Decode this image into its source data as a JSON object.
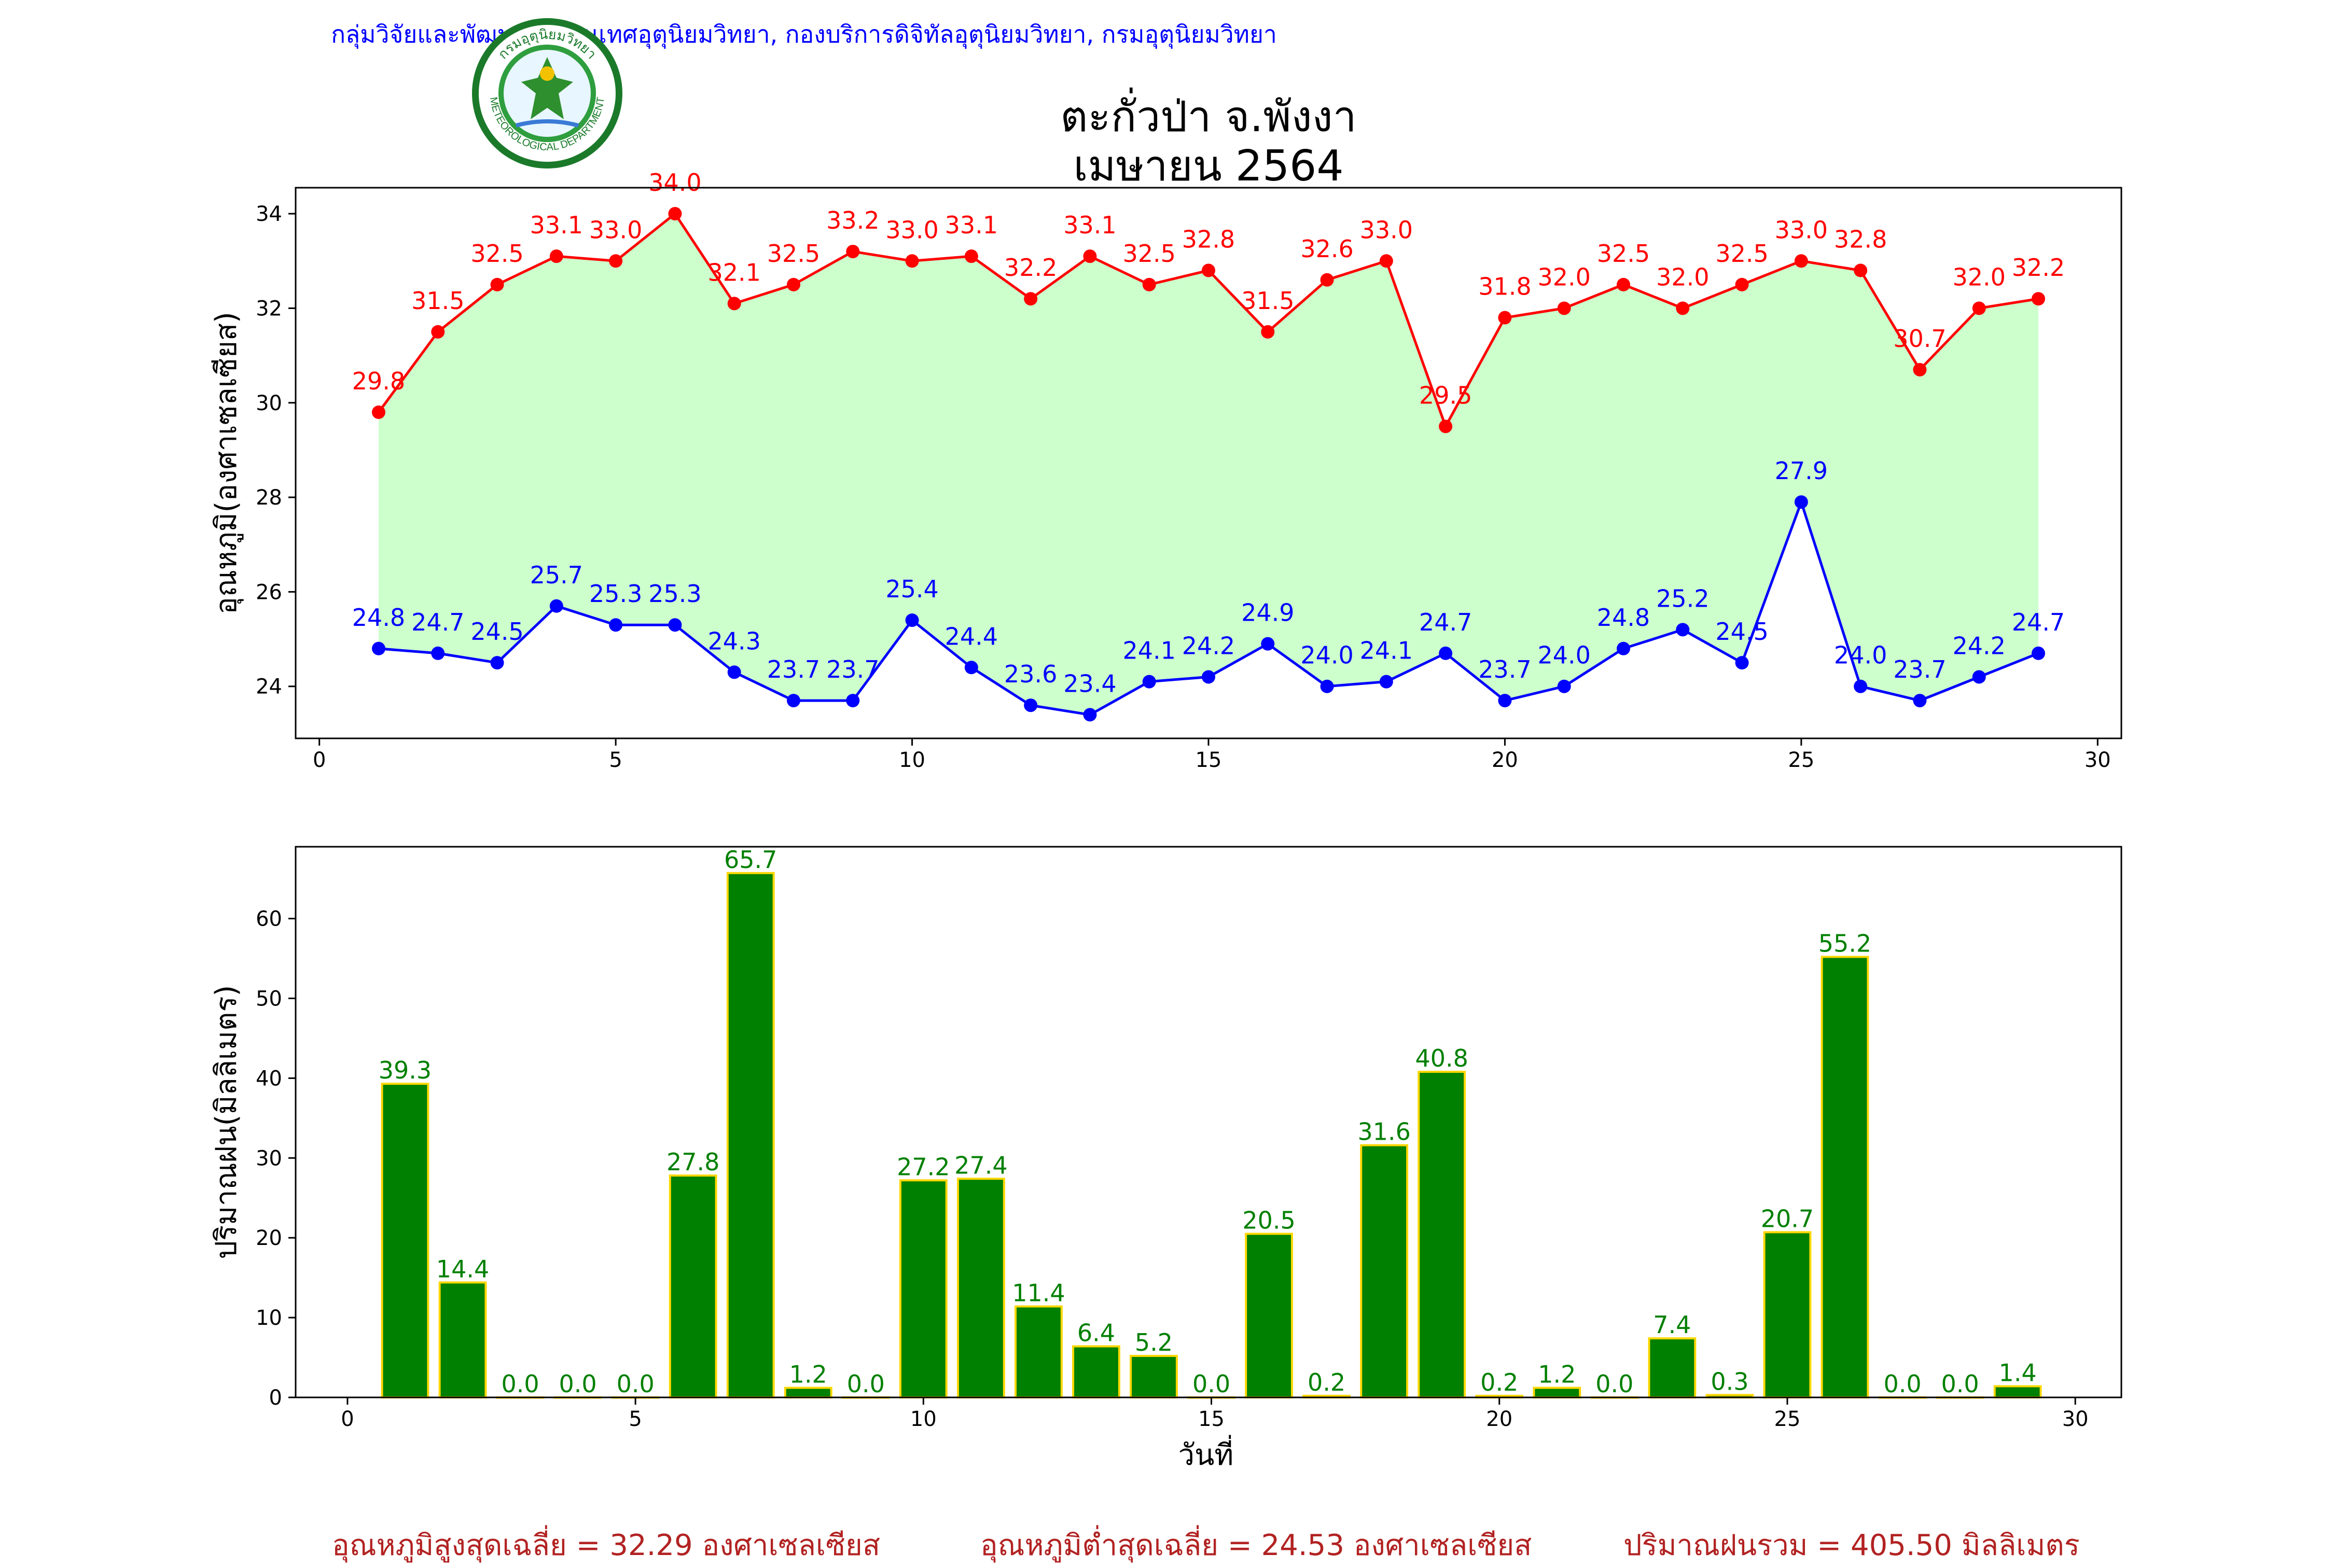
{
  "header": {
    "organization": "กลุ่มวิจัยและพัฒนาสารสนเทศอุตุนิยมวิทยา, กองบริการดิจิทัลอุตุนิยมวิทยา, กรมอุตุนิยมวิทยา",
    "title_line1": "ตะกั่วป่า จ.พังงา",
    "title_line2": "เมษายน 2564",
    "logo_top_text": "กรมอุตุนิยมวิทยา",
    "logo_bottom_text": "METEOROLOGICAL DEPARTMENT"
  },
  "footer": {
    "avg_max": "อุณหภูมิสูงสุดเฉลี่ย = 32.29 องศาเซลเซียส",
    "avg_min": "อุณหภูมิต่ำสุดเฉลี่ย = 24.53 องศาเซลเซียส",
    "total_rain": "ปริมาณฝนรวม = 405.50 มิลลิเมตร"
  },
  "colors": {
    "max_line": "#ff0000",
    "min_line": "#0000ff",
    "fill": "#ccffcc",
    "bar": "#008000",
    "bar_edge": "#ffd700",
    "bar_label": "#008000"
  },
  "chart_data": [
    {
      "type": "line",
      "ylabel": "อุณหภูมิ(องศาเซลเซียส)",
      "xlim": [
        -0.4,
        30.4
      ],
      "ylim": [
        22.9,
        34.55
      ],
      "xticks": [
        0,
        5,
        10,
        15,
        20,
        25,
        30
      ],
      "yticks": [
        24,
        26,
        28,
        30,
        32,
        34
      ],
      "x": [
        1,
        2,
        3,
        4,
        5,
        6,
        7,
        8,
        9,
        10,
        11,
        12,
        13,
        14,
        15,
        16,
        17,
        18,
        19,
        20,
        21,
        22,
        23,
        24,
        25,
        26,
        27,
        28,
        29
      ],
      "series": [
        {
          "key": "max",
          "values": [
            29.8,
            31.5,
            32.5,
            33.1,
            33.0,
            34.0,
            32.1,
            32.5,
            33.2,
            33.0,
            33.1,
            32.2,
            33.1,
            32.5,
            32.8,
            31.5,
            32.6,
            33.0,
            29.5,
            31.8,
            32.0,
            32.5,
            32.0,
            32.5,
            33.0,
            32.8,
            30.7,
            32.0,
            32.2
          ]
        },
        {
          "key": "min",
          "values": [
            24.8,
            24.7,
            24.5,
            25.7,
            25.3,
            25.3,
            24.3,
            23.7,
            23.7,
            25.4,
            24.4,
            23.6,
            23.4,
            24.1,
            24.2,
            24.9,
            24.0,
            24.1,
            24.7,
            23.7,
            24.0,
            24.8,
            25.2,
            24.5,
            27.9,
            24.0,
            23.7,
            24.2,
            24.7
          ]
        }
      ]
    },
    {
      "type": "bar",
      "xlabel": "วันที่",
      "ylabel": "ปริมาณฝน(มิลลิเมตร)",
      "xlim": [
        -0.9,
        30.8
      ],
      "ylim": [
        0,
        69
      ],
      "xticks": [
        0,
        5,
        10,
        15,
        20,
        25,
        30
      ],
      "yticks": [
        0,
        10,
        20,
        30,
        40,
        50,
        60
      ],
      "categories": [
        1,
        2,
        3,
        4,
        5,
        6,
        7,
        8,
        9,
        10,
        11,
        12,
        13,
        14,
        15,
        16,
        17,
        18,
        19,
        20,
        21,
        22,
        23,
        24,
        25,
        26,
        27,
        28,
        29
      ],
      "values": [
        39.3,
        14.4,
        0.0,
        0.0,
        0.0,
        27.8,
        65.7,
        1.2,
        0.0,
        27.2,
        27.4,
        11.4,
        6.4,
        5.2,
        0.0,
        20.5,
        0.2,
        31.6,
        40.8,
        0.2,
        1.2,
        0.0,
        7.4,
        0.3,
        20.7,
        55.2,
        0.0,
        0.0,
        1.4
      ]
    }
  ]
}
